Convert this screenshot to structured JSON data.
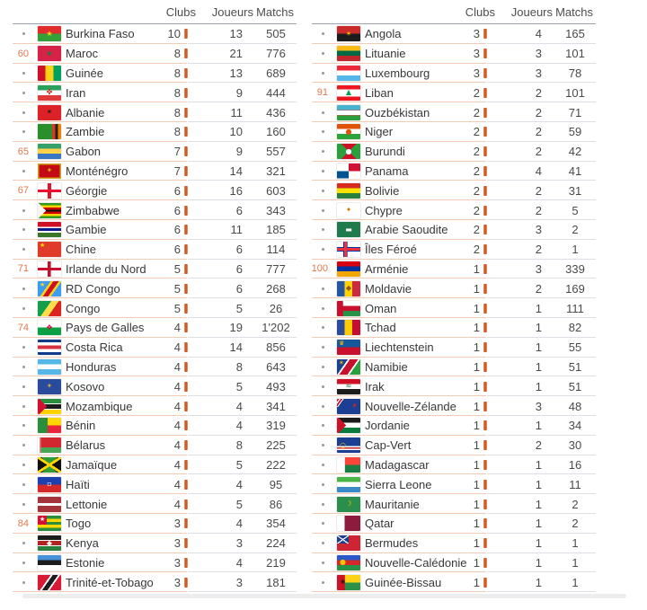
{
  "colors": {
    "accent_bar": "#d35a28",
    "rank_number": "#e0794e",
    "divider_left": "#f2cbb4",
    "divider_right": "#dbe0e6",
    "header_border": "#9aa1ab",
    "value_text": "#4a4a4a",
    "country_text": "#383838",
    "header_text": "#4d4d4d",
    "dot": "#a0958c",
    "scrollbar": "#ededed"
  },
  "tables": [
    {
      "header": {
        "clubs": "Clubs",
        "joueurs": "Joueurs",
        "matchs": "Matchs"
      },
      "rows": [
        {
          "rank": "",
          "country": "Burkina Faso",
          "clubs": "10",
          "joueurs": "13",
          "matchs": "505",
          "flag": {
            "bg": "linear-gradient(180deg,#e02c2c 50%,#35a039 50%)",
            "emblem": "★",
            "ecolor": "#fcd116"
          }
        },
        {
          "rank": "60",
          "country": "Maroc",
          "clubs": "8",
          "joueurs": "21",
          "matchs": "776",
          "flag": {
            "bg": "#d62246",
            "emblem": "★",
            "ecolor": "#1a7a3c"
          }
        },
        {
          "rank": "",
          "country": "Guinée",
          "clubs": "8",
          "joueurs": "13",
          "matchs": "689",
          "flag": {
            "bg": "linear-gradient(90deg,#ce1126 33.4%,#fcd116 33.4% 66.7%,#00a05e 66.7%)"
          }
        },
        {
          "rank": "",
          "country": "Iran",
          "clubs": "8",
          "joueurs": "9",
          "matchs": "444",
          "flag": {
            "bg": "linear-gradient(180deg,#2aa05a 33%,#ffffff 33% 66%,#e03a3a 66%)",
            "emblem": "✤",
            "ecolor": "#cc2a1e"
          }
        },
        {
          "rank": "",
          "country": "Albanie",
          "clubs": "8",
          "joueurs": "11",
          "matchs": "436",
          "flag": {
            "bg": "#dc2127",
            "emblem": "✶",
            "ecolor": "#1a1a1a"
          }
        },
        {
          "rank": "",
          "country": "Zambie",
          "clubs": "8",
          "joueurs": "10",
          "matchs": "160",
          "flag": {
            "bg": "linear-gradient(90deg,#2a8f2a 62%,#cf3d2a 62% 75%,#222222 75% 87%,#ef7d00 87%)"
          }
        },
        {
          "rank": "65",
          "country": "Gabon",
          "clubs": "7",
          "joueurs": "9",
          "matchs": "557",
          "flag": {
            "bg": "linear-gradient(180deg,#36a06a 33%,#ffd24a 33% 66%,#3a75c4 66%)"
          }
        },
        {
          "rank": "",
          "country": "Monténégro",
          "clubs": "7",
          "joueurs": "14",
          "matchs": "321",
          "flag": {
            "bg": "#c40b15",
            "emblem": "✦",
            "ecolor": "#e6b319",
            "border": "#d4a017"
          }
        },
        {
          "rank": "67",
          "country": "Géorgie",
          "clubs": "6",
          "joueurs": "16",
          "matchs": "603",
          "flag": {
            "bg": "linear-gradient(#e8112d,#e8112d) 50% 0/16% 100% no-repeat,linear-gradient(#e8112d,#e8112d) 0 50%/100% 20% no-repeat,#ffffff"
          }
        },
        {
          "rank": "",
          "country": "Zimbabwe",
          "clubs": "6",
          "joueurs": "6",
          "matchs": "343",
          "flag": {
            "bg": "conic-gradient(from 225deg at 36% 50%,#f5f5f5 0 90deg,rgba(0,0,0,0) 90deg),linear-gradient(180deg,#2e9b1e 14.3%,#ffd200 14.3% 28.6%,#d40000 28.6% 42.9%,#111111 42.9% 57.2%,#d40000 57.2% 71.5%,#ffd200 71.5% 85.8%,#2e9b1e 85.8%)"
          }
        },
        {
          "rank": "",
          "country": "Gambie",
          "clubs": "6",
          "joueurs": "11",
          "matchs": "185",
          "flag": {
            "bg": "linear-gradient(180deg,#ce1126 32%,#ffffff 32% 42%,#0c1c8c 42% 60%,#ffffff 60% 70%,#3a7728 70%)"
          }
        },
        {
          "rank": "",
          "country": "Chine",
          "clubs": "6",
          "joueurs": "6",
          "matchs": "114",
          "flag": {
            "bg": "#e03a2a",
            "emblem": "★",
            "ecolor": "#ffde00",
            "epos": "tl"
          }
        },
        {
          "rank": "71",
          "country": "Irlande du Nord",
          "clubs": "5",
          "joueurs": "6",
          "matchs": "777",
          "flag": {
            "bg": "linear-gradient(#c8102e,#c8102e) 50% 0/14% 100% no-repeat,linear-gradient(#c8102e,#c8102e) 0 50%/100% 18% no-repeat,#ffffff"
          }
        },
        {
          "rank": "",
          "country": "RD Congo",
          "clubs": "5",
          "joueurs": "6",
          "matchs": "268",
          "flag": {
            "bg": "linear-gradient(125deg,#3b9df2 38%,#f7d618 38% 46%,#ce1021 46% 62%,#f7d618 62% 70%,#3b9df2 70%)",
            "emblem": "★",
            "ecolor": "#f7d618",
            "epos": "tl"
          }
        },
        {
          "rank": "",
          "country": "Congo",
          "clubs": "5",
          "joueurs": "5",
          "matchs": "26",
          "flag": {
            "bg": "linear-gradient(125deg,#159f4d 40%,#fbde4a 40% 62%,#dc241f 62%)"
          }
        },
        {
          "rank": "74",
          "country": "Pays de Galles",
          "clubs": "4",
          "joueurs": "19",
          "matchs": "1'202",
          "flag": {
            "bg": "linear-gradient(180deg,#ffffff 50%,#0ca044 50%)",
            "emblem": "❖",
            "ecolor": "#d30731"
          }
        },
        {
          "rank": "",
          "country": "Costa Rica",
          "clubs": "4",
          "joueurs": "14",
          "matchs": "856",
          "flag": {
            "bg": "linear-gradient(180deg,#123a8a 18%,#ffffff 18% 38%,#d6303e 38% 62%,#ffffff 62% 82%,#123a8a 82%)"
          }
        },
        {
          "rank": "",
          "country": "Honduras",
          "clubs": "4",
          "joueurs": "8",
          "matchs": "643",
          "flag": {
            "bg": "linear-gradient(180deg,#55b7e8 33%,#ffffff 33% 66%,#55b7e8 66%)"
          }
        },
        {
          "rank": "",
          "country": "Kosovo",
          "clubs": "4",
          "joueurs": "5",
          "matchs": "493",
          "flag": {
            "bg": "#2a4b9b",
            "emblem": "✦",
            "ecolor": "#d0a650"
          }
        },
        {
          "rank": "",
          "country": "Mozambique",
          "clubs": "4",
          "joueurs": "4",
          "matchs": "341",
          "flag": {
            "bg": "conic-gradient(from 225deg at 40% 50%,#d21034 0 90deg,rgba(0,0,0,0) 90deg),linear-gradient(180deg,#2a8f3c 30%,#ffffff 30% 36%,#1c1c1c 36% 64%,#ffffff 64% 70%,#ffd200 70%)"
          }
        },
        {
          "rank": "",
          "country": "Bénin",
          "clubs": "4",
          "joueurs": "4",
          "matchs": "319",
          "flag": {
            "bg": "linear-gradient(90deg,#2a8f3c 42%,rgba(0,0,0,0) 42%),linear-gradient(180deg,#ffd600 50%,#e8253a 50%)"
          }
        },
        {
          "rank": "",
          "country": "Bélarus",
          "clubs": "4",
          "joueurs": "8",
          "matchs": "225",
          "flag": {
            "bg": "linear-gradient(90deg,#ffffff 7%,#e87f8f 7% 13%,rgba(0,0,0,0) 13%),linear-gradient(180deg,#d22730 65%,#4aa657 65%)"
          }
        },
        {
          "rank": "",
          "country": "Jamaïque",
          "clubs": "4",
          "joueurs": "5",
          "matchs": "222",
          "flag": {
            "bg": "linear-gradient(to bottom right,rgba(0,0,0,0) 45%,#ffd600 45% 55%,rgba(0,0,0,0) 55%),linear-gradient(to bottom left,rgba(0,0,0,0) 45%,#ffd600 45% 55%,rgba(0,0,0,0) 55%),conic-gradient(from 45deg,#111111 0 90deg,#2d9d3a 90deg 180deg,#111111 180deg 270deg,#2d9d3a 270deg 360deg)"
          }
        },
        {
          "rank": "",
          "country": "Haïti",
          "clubs": "4",
          "joueurs": "4",
          "matchs": "95",
          "flag": {
            "bg": "linear-gradient(180deg,#1e3fae 50%,#d62828 50%)",
            "emblem": "▫",
            "ecolor": "#ffffff"
          }
        },
        {
          "rank": "",
          "country": "Lettonie",
          "clubs": "4",
          "joueurs": "5",
          "matchs": "86",
          "flag": {
            "bg": "linear-gradient(180deg,#a4343a 40%,#ffffff 40% 60%,#a4343a 60%)"
          }
        },
        {
          "rank": "84",
          "country": "Togo",
          "clubs": "3",
          "joueurs": "4",
          "matchs": "354",
          "flag": {
            "bg": "linear-gradient(#d21034,#d21034) 0 0/40% 60% no-repeat,linear-gradient(180deg,#2a8f3c 20%,#ffd600 20% 40%,#2a8f3c 40% 60%,#ffd600 60% 80%,#2a8f3c 80%)",
            "emblem": "★",
            "ecolor": "#ffffff",
            "epos": "tl"
          }
        },
        {
          "rank": "",
          "country": "Kenya",
          "clubs": "3",
          "joueurs": "3",
          "matchs": "224",
          "flag": {
            "bg": "linear-gradient(180deg,#1c1c1c 28%,#ffffff 28% 34%,#b22222 34% 66%,#ffffff 66% 72%,#2a7f3c 72%)",
            "emblem": "◆",
            "ecolor": "#eeeeee"
          }
        },
        {
          "rank": "",
          "country": "Estonie",
          "clubs": "3",
          "joueurs": "4",
          "matchs": "219",
          "flag": {
            "bg": "linear-gradient(180deg,#4891d9 33%,#1c1c1c 33% 66%,#ffffff 66%)"
          }
        },
        {
          "rank": "",
          "country": "Trinité-et-Tobago",
          "clubs": "3",
          "joueurs": "3",
          "matchs": "181",
          "flag": {
            "bg": "linear-gradient(125deg,#da1a35 38%,#ffffff 38% 44%,#1c1c1c 44% 60%,#ffffff 60% 66%,#da1a35 66%)"
          }
        }
      ]
    },
    {
      "header": {
        "clubs": "Clubs",
        "joueurs": "Joueurs",
        "matchs": "Matchs"
      },
      "rows": [
        {
          "rank": "",
          "country": "Angola",
          "clubs": "3",
          "joueurs": "4",
          "matchs": "165",
          "flag": {
            "bg": "linear-gradient(180deg,#cc2a2a 50%,#1c1c1c 50%)",
            "emblem": "✶",
            "ecolor": "#f4c300"
          }
        },
        {
          "rank": "",
          "country": "Lituanie",
          "clubs": "3",
          "joueurs": "3",
          "matchs": "101",
          "flag": {
            "bg": "linear-gradient(180deg,#fdb913 33%,#006a44 33% 66%,#c1272d 66%)"
          }
        },
        {
          "rank": "",
          "country": "Luxembourg",
          "clubs": "3",
          "joueurs": "3",
          "matchs": "78",
          "flag": {
            "bg": "linear-gradient(180deg,#ed2939 33%,#ffffff 33% 66%,#55b7e8 66%)"
          }
        },
        {
          "rank": "91",
          "country": "Liban",
          "clubs": "2",
          "joueurs": "2",
          "matchs": "101",
          "flag": {
            "bg": "linear-gradient(180deg,#ee161f 27%,#ffffff 27% 73%,#ee161f 73%)",
            "emblem": "▲",
            "ecolor": "#00a651"
          }
        },
        {
          "rank": "",
          "country": "Ouzbékistan",
          "clubs": "2",
          "joueurs": "2",
          "matchs": "71",
          "flag": {
            "bg": "linear-gradient(180deg,#45b5cf 31%,#d94b4b 31% 36%,#ffffff 36% 64%,#d94b4b 64% 69%,#2a9f3c 69%)"
          }
        },
        {
          "rank": "",
          "country": "Niger",
          "clubs": "2",
          "joueurs": "2",
          "matchs": "59",
          "flag": {
            "bg": "linear-gradient(180deg,#e05206 33%,#ffffff 33% 66%,#2ca43c 66%)",
            "emblem": "●",
            "ecolor": "#e05206"
          }
        },
        {
          "rank": "",
          "country": "Burundi",
          "clubs": "2",
          "joueurs": "2",
          "matchs": "42",
          "flag": {
            "bg": "conic-gradient(from 45deg,#2a9f3c 0 90deg,#ce1126 90deg 180deg,#2a9f3c 180deg 270deg,#ce1126 270deg 360deg)",
            "emblem": "●",
            "ecolor": "#ffffff"
          }
        },
        {
          "rank": "",
          "country": "Panama",
          "clubs": "2",
          "joueurs": "4",
          "matchs": "41",
          "flag": {
            "bg": "linear-gradient(90deg,#ffffff 50%,#d21034 50%) 0 0/100% 50% no-repeat,linear-gradient(90deg,#005293 50%,#ffffff 50%) 0 100%/100% 50% no-repeat"
          }
        },
        {
          "rank": "",
          "country": "Bolivie",
          "clubs": "2",
          "joueurs": "2",
          "matchs": "31",
          "flag": {
            "bg": "linear-gradient(180deg,#d52b1e 33%,#f9e300 33% 66%,#2a7f3c 66%)"
          }
        },
        {
          "rank": "",
          "country": "Chypre",
          "clubs": "2",
          "joueurs": "2",
          "matchs": "5",
          "flag": {
            "bg": "#ffffff",
            "emblem": "✦",
            "ecolor": "#d57800"
          }
        },
        {
          "rank": "",
          "country": "Arabie Saoudite",
          "clubs": "2",
          "joueurs": "3",
          "matchs": "2",
          "flag": {
            "bg": "#1f7a4c",
            "emblem": "▬",
            "ecolor": "#ffffff"
          }
        },
        {
          "rank": "",
          "country": "Îles Féroé",
          "clubs": "2",
          "joueurs": "2",
          "matchs": "1",
          "flag": {
            "bg": "linear-gradient(#ef303e,#ef303e) 34% 0/12% 100% no-repeat,linear-gradient(#ef303e,#ef303e) 0 50%/100% 18% no-repeat,linear-gradient(#0535a0,#0535a0) 31% 0/18% 100% no-repeat,linear-gradient(#0535a0,#0535a0) 0 50%/100% 30% no-repeat,#ffffff"
          }
        },
        {
          "rank": "100",
          "country": "Arménie",
          "clubs": "1",
          "joueurs": "3",
          "matchs": "339",
          "flag": {
            "bg": "linear-gradient(180deg,#d90012 33%,#0033a0 33% 66%,#f2a800 66%)"
          }
        },
        {
          "rank": "",
          "country": "Moldavie",
          "clubs": "1",
          "joueurs": "2",
          "matchs": "169",
          "flag": {
            "bg": "linear-gradient(90deg,#2456a5 33%,#ffd200 33% 66%,#cc2a3e 66%)",
            "emblem": "◆",
            "ecolor": "#8a5a2a"
          }
        },
        {
          "rank": "",
          "country": "Oman",
          "clubs": "1",
          "joueurs": "1",
          "matchs": "111",
          "flag": {
            "bg": "linear-gradient(#c8102e,#c8102e) 0 0/26% 100% no-repeat,linear-gradient(180deg,#ffffff 33%,#c8102e 33% 66%,#2a9246 66%)"
          }
        },
        {
          "rank": "",
          "country": "Tchad",
          "clubs": "1",
          "joueurs": "1",
          "matchs": "82",
          "flag": {
            "bg": "linear-gradient(90deg,#2a4b9b 33%,#fecb00 33% 66%,#c60c30 66%)"
          }
        },
        {
          "rank": "",
          "country": "Liechtenstein",
          "clubs": "1",
          "joueurs": "1",
          "matchs": "55",
          "flag": {
            "bg": "linear-gradient(180deg,#17579c 50%,#c8102e 50%)",
            "emblem": "♛",
            "ecolor": "#f4c300",
            "epos": "tl"
          }
        },
        {
          "rank": "",
          "country": "Namibie",
          "clubs": "1",
          "joueurs": "1",
          "matchs": "51",
          "flag": {
            "bg": "linear-gradient(125deg,#1c3f94 32%,#ffffff 32% 38%,#c8102e 38% 62%,#ffffff 62% 68%,#2a9f3c 68%)",
            "emblem": "✶",
            "ecolor": "#f4c300",
            "epos": "tl"
          }
        },
        {
          "rank": "",
          "country": "Irak",
          "clubs": "1",
          "joueurs": "1",
          "matchs": "51",
          "flag": {
            "bg": "linear-gradient(180deg,#ce1126 33%,#ffffff 33% 66%,#1c1c1c 66%)",
            "emblem": "≈",
            "ecolor": "#0a7a3d"
          }
        },
        {
          "rank": "",
          "country": "Nouvelle-Zélande",
          "clubs": "1",
          "joueurs": "3",
          "matchs": "48",
          "flag": {
            "bg": "linear-gradient(125deg,#c8102e 12%,#ffffff 12% 20%,#c8102e 20% 30%,#ffffff 30% 36%,#1c3f94 36%) 0 0/55% 55% no-repeat,#1c3f94",
            "emblem": "✶",
            "ecolor": "#cf2a2a",
            "epos": "r"
          }
        },
        {
          "rank": "",
          "country": "Jordanie",
          "clubs": "1",
          "joueurs": "1",
          "matchs": "34",
          "flag": {
            "bg": "conic-gradient(from 225deg at 40% 50%,#ce1126 0 90deg,rgba(0,0,0,0) 90deg),linear-gradient(180deg,#1c1c1c 33%,#ffffff 33% 66%,#0a7a3d 66%)"
          }
        },
        {
          "rank": "",
          "country": "Cap-Vert",
          "clubs": "1",
          "joueurs": "2",
          "matchs": "30",
          "flag": {
            "bg": "linear-gradient(180deg,rgba(0,0,0,0) 55%,#ffffff 55% 64%,#cf2027 64% 73%,#ffffff 73% 82%,rgba(0,0,0,0) 82%),#1c3f94",
            "emblem": "○",
            "ecolor": "#f4c300",
            "epos": "l"
          }
        },
        {
          "rank": "",
          "country": "Madagascar",
          "clubs": "1",
          "joueurs": "1",
          "matchs": "16",
          "flag": {
            "bg": "linear-gradient(#ffffff,#ffffff) 0 0/34% 100% no-repeat,linear-gradient(180deg,#fc4438 50%,#1a7e42 50%)"
          }
        },
        {
          "rank": "",
          "country": "Sierra Leone",
          "clubs": "1",
          "joueurs": "1",
          "matchs": "11",
          "flag": {
            "bg": "linear-gradient(180deg,#4ab748 33%,#ffffff 33% 66%,#3a8ac8 66%)"
          }
        },
        {
          "rank": "",
          "country": "Mauritanie",
          "clubs": "1",
          "joueurs": "1",
          "matchs": "2",
          "flag": {
            "bg": "#2a8f4c",
            "emblem": "☽",
            "ecolor": "#ffc400"
          }
        },
        {
          "rank": "",
          "country": "Qatar",
          "clubs": "1",
          "joueurs": "1",
          "matchs": "2",
          "flag": {
            "bg": "linear-gradient(90deg,#ffffff 32%,#8d1b3d 32%)"
          }
        },
        {
          "rank": "",
          "country": "Bermudes",
          "clubs": "1",
          "joueurs": "1",
          "matchs": "1",
          "flag": {
            "bg": "linear-gradient(to bottom right,rgba(0,0,0,0) 46%,#ffffff 46% 54%,rgba(0,0,0,0) 54%) 0 0/50% 55% no-repeat,linear-gradient(to bottom left,rgba(0,0,0,0) 46%,#ffffff 46% 54%,rgba(0,0,0,0) 54%) 0 0/50% 55% no-repeat,linear-gradient(#1c3f94,#1c3f94) 0 0/50% 55% no-repeat,#cf2434"
          }
        },
        {
          "rank": "",
          "country": "Nouvelle-Calédonie",
          "clubs": "1",
          "joueurs": "1",
          "matchs": "1",
          "flag": {
            "bg": "linear-gradient(180deg,#2a58c8 33%,#d62828 33% 66%,#2a9246 66%)",
            "emblem": "●",
            "ecolor": "#f4c300",
            "epos": "l"
          }
        },
        {
          "rank": "",
          "country": "Guinée-Bissau",
          "clubs": "1",
          "joueurs": "1",
          "matchs": "1",
          "flag": {
            "bg": "linear-gradient(#ce1126,#ce1126) 0 0/34% 100% no-repeat,linear-gradient(180deg,#fcd116 50%,#2a9246 50%)",
            "emblem": "★",
            "ecolor": "#1c1c1c",
            "epos": "l"
          }
        }
      ]
    }
  ]
}
